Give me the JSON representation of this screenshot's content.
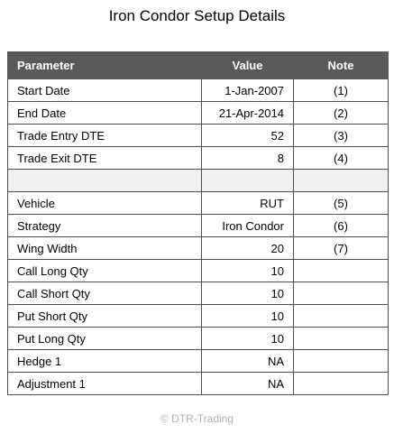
{
  "title": "Iron Condor Setup Details",
  "columns": {
    "parameter": "Parameter",
    "value": "Value",
    "note": "Note"
  },
  "rows": [
    {
      "parameter": "Start Date",
      "value": "1-Jan-2007",
      "note": "(1)"
    },
    {
      "parameter": "End Date",
      "value": "21-Apr-2014",
      "note": "(2)"
    },
    {
      "parameter": "Trade Entry DTE",
      "value": "52",
      "note": "(3)"
    },
    {
      "parameter": "Trade Exit DTE",
      "value": "8",
      "note": "(4)"
    },
    {
      "parameter": "",
      "value": "",
      "note": ""
    },
    {
      "parameter": "Vehicle",
      "value": "RUT",
      "note": "(5)"
    },
    {
      "parameter": "Strategy",
      "value": "Iron Condor",
      "note": "(6)"
    },
    {
      "parameter": "Wing Width",
      "value": "20",
      "note": "(7)"
    },
    {
      "parameter": "Call Long Qty",
      "value": "10",
      "note": ""
    },
    {
      "parameter": "Call Short Qty",
      "value": "10",
      "note": ""
    },
    {
      "parameter": "Put Short Qty",
      "value": "10",
      "note": ""
    },
    {
      "parameter": "Put Long Qty",
      "value": "10",
      "note": ""
    },
    {
      "parameter": "Hedge 1",
      "value": "NA",
      "note": ""
    },
    {
      "parameter": "Adjustment 1",
      "value": "NA",
      "note": ""
    }
  ],
  "footer": "© DTR-Trading",
  "colors": {
    "header_bg": "#595959",
    "header_text": "#ffffff",
    "border": "#4d4d4d",
    "blank_row_bg": "#f0f0f0",
    "footer_text": "#b0b0b0"
  }
}
